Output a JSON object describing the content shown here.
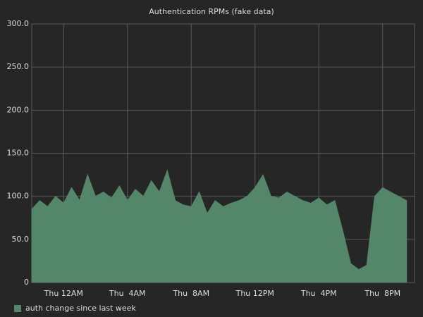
{
  "chart_data": {
    "type": "area",
    "title": "Authentication RPMs (fake data)",
    "x": [
      -2,
      -1.5,
      -1,
      -0.5,
      0,
      0.5,
      1,
      1.5,
      2,
      2.5,
      3,
      3.5,
      4,
      4.5,
      5,
      5.5,
      6,
      6.5,
      7,
      7.5,
      8,
      8.5,
      9,
      9.5,
      10,
      10.5,
      11,
      11.5,
      12,
      12.5,
      13,
      13.5,
      14,
      14.5,
      15,
      15.5,
      16,
      16.5,
      17,
      17.5,
      18,
      18.5,
      19,
      19.5,
      20,
      20.5,
      21,
      21.5
    ],
    "series": [
      {
        "name": "auth change since last week",
        "color": "#54876a",
        "values": [
          85,
          95,
          88,
          100,
          92,
          110,
          95,
          125,
          100,
          105,
          98,
          112,
          95,
          108,
          100,
          118,
          105,
          130,
          95,
          90,
          88,
          105,
          80,
          95,
          88,
          92,
          95,
          100,
          110,
          125,
          100,
          98,
          105,
          100,
          95,
          92,
          98,
          90,
          95,
          60,
          22,
          15,
          20,
          100,
          110,
          105,
          100,
          95
        ]
      }
    ],
    "xlim": [
      -2,
      22
    ],
    "xticks": [
      {
        "value": 0,
        "label": "Thu 12AM"
      },
      {
        "value": 4,
        "label": "Thu  4AM"
      },
      {
        "value": 8,
        "label": "Thu  8AM"
      },
      {
        "value": 12,
        "label": "Thu 12PM"
      },
      {
        "value": 16,
        "label": "Thu  4PM"
      },
      {
        "value": 20,
        "label": "Thu  8PM"
      }
    ],
    "ylim": [
      0,
      300
    ],
    "yticks": [
      0,
      {
        "value": 50,
        "label": "50.0"
      },
      {
        "value": 100,
        "label": "100.0"
      },
      {
        "value": 150,
        "label": "150.0"
      },
      {
        "value": 200,
        "label": "200.0"
      },
      {
        "value": 250,
        "label": "250.0"
      },
      {
        "value": 300,
        "label": "300.0"
      }
    ],
    "grid": true,
    "legend": "bottom-left"
  }
}
